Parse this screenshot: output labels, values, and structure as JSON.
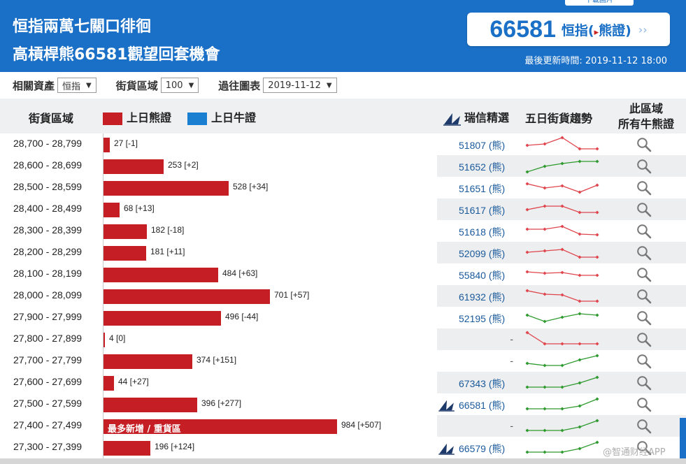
{
  "header": {
    "title_line1": "恒指兩萬七關口徘徊",
    "title_line2": "高槓桿熊66581觀望回套機會",
    "top_tab_label": "下載圖片",
    "code_number": "66581",
    "code_type": "恒指(",
    "code_type_tri": "▸",
    "code_type_tail": "熊證)",
    "code_arrow": "››",
    "update_time": "最後更新時間: 2019-11-12 18:00"
  },
  "filters": {
    "asset_label": "相關資產",
    "asset_value": "恒指",
    "range_label": "街貨區域",
    "range_value": "100",
    "date_label": "過往圖表",
    "date_value": "2019-11-12"
  },
  "columns": {
    "range": "街貨區域",
    "bear_legend": "上日熊證",
    "bull_legend": "上日牛證",
    "pick": "瑞信精選",
    "trend": "五日街貨趨勢",
    "all_line1": "此區域",
    "all_line2": "所有牛熊證"
  },
  "colors": {
    "bear": "#c51f25",
    "bull": "#1a7fd0",
    "header_bg": "#1a6fc6",
    "trend_down": "#e0454d",
    "trend_up": "#2f9a2f"
  },
  "rows": [
    {
      "range": "28,700 - 28,799",
      "value": 27,
      "change": "27 [-1]",
      "pick": "51807 (熊)",
      "rs_icon": false,
      "trend": "down",
      "spark": [
        0.6,
        0.5,
        0.05,
        0.85,
        0.85
      ]
    },
    {
      "range": "28,600 - 28,699",
      "value": 253,
      "change": "253 [+2]",
      "pick": "51652 (熊)",
      "rs_icon": false,
      "trend": "up",
      "spark": [
        0.95,
        0.55,
        0.35,
        0.2,
        0.2
      ]
    },
    {
      "range": "28,500 - 28,599",
      "value": 528,
      "change": "528 [+34]",
      "pick": "51651 (熊)",
      "rs_icon": false,
      "trend": "down",
      "spark": [
        0.25,
        0.55,
        0.4,
        0.85,
        0.35
      ]
    },
    {
      "range": "28,400 - 28,499",
      "value": 68,
      "change": "68 [+13]",
      "pick": "51617 (熊)",
      "rs_icon": false,
      "trend": "down",
      "spark": [
        0.55,
        0.3,
        0.3,
        0.75,
        0.75
      ]
    },
    {
      "range": "28,300 - 28,399",
      "value": 182,
      "change": "182 [-18]",
      "pick": "51618 (熊)",
      "rs_icon": false,
      "trend": "down",
      "spark": [
        0.4,
        0.4,
        0.2,
        0.75,
        0.8
      ]
    },
    {
      "range": "28,200 - 28,299",
      "value": 181,
      "change": "181 [+11]",
      "pick": "52099 (熊)",
      "rs_icon": false,
      "trend": "down",
      "spark": [
        0.5,
        0.4,
        0.3,
        0.85,
        0.85
      ]
    },
    {
      "range": "28,100 - 28,199",
      "value": 484,
      "change": "484 [+63]",
      "pick": "55840 (熊)",
      "rs_icon": false,
      "trend": "down",
      "spark": [
        0.35,
        0.45,
        0.4,
        0.6,
        0.6
      ]
    },
    {
      "range": "28,000 - 28,099",
      "value": 701,
      "change": "701 [+57]",
      "pick": "61932 (熊)",
      "rs_icon": false,
      "trend": "down",
      "spark": [
        0.15,
        0.4,
        0.45,
        0.9,
        0.9
      ]
    },
    {
      "range": "27,900 - 27,999",
      "value": 496,
      "change": "496 [-44]",
      "pick": "52195 (熊)",
      "rs_icon": false,
      "trend": "up",
      "spark": [
        0.35,
        0.8,
        0.5,
        0.25,
        0.35
      ]
    },
    {
      "range": "27,800 - 27,899",
      "value": 4,
      "change": "4 [0]",
      "pick": "-",
      "rs_icon": false,
      "trend": "down",
      "spark": [
        0.05,
        0.85,
        0.85,
        0.85,
        0.85
      ]
    },
    {
      "range": "27,700 - 27,799",
      "value": 374,
      "change": "374 [+151]",
      "pick": "-",
      "rs_icon": false,
      "trend": "up",
      "spark": [
        0.7,
        0.85,
        0.85,
        0.45,
        0.15
      ]
    },
    {
      "range": "27,600 - 27,699",
      "value": 44,
      "change": "44 [+27]",
      "pick": "67343 (熊)",
      "rs_icon": false,
      "trend": "up",
      "spark": [
        0.85,
        0.85,
        0.85,
        0.55,
        0.15
      ]
    },
    {
      "range": "27,500 - 27,599",
      "value": 396,
      "change": "396 [+277]",
      "pick": "66581 (熊)",
      "rs_icon": true,
      "trend": "up",
      "spark": [
        0.85,
        0.85,
        0.85,
        0.65,
        0.15
      ]
    },
    {
      "range": "27,400 - 27,499",
      "value": 984,
      "change": "984 [+507]",
      "pick": "-",
      "rs_icon": false,
      "trend": "up",
      "spark": [
        0.85,
        0.85,
        0.85,
        0.6,
        0.15
      ],
      "bar_note": "最多新增 / 重貨區"
    },
    {
      "range": "27,300 - 27,399",
      "value": 196,
      "change": "196 [+124]",
      "pick": "66579 (熊)",
      "rs_icon": true,
      "trend": "up",
      "spark": [
        0.85,
        0.85,
        0.85,
        0.6,
        0.15
      ]
    }
  ],
  "max_value": 984,
  "watermark": "@智通财经APP"
}
